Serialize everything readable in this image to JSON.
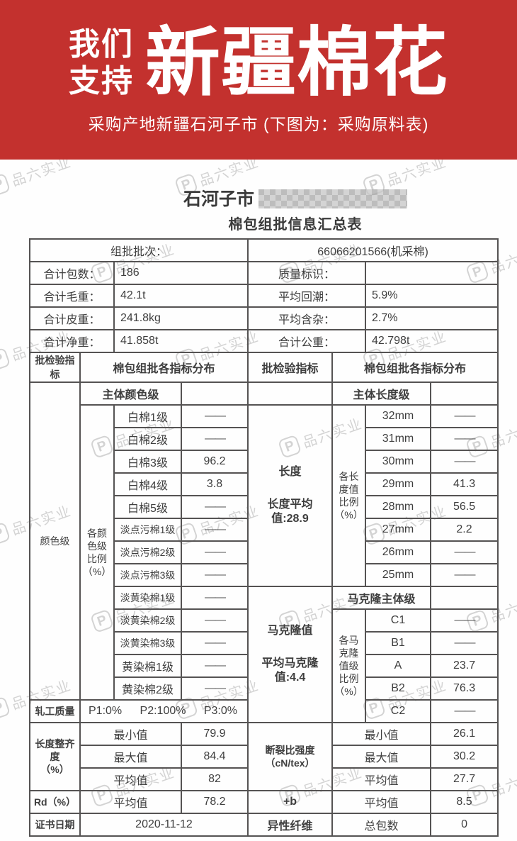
{
  "banner": {
    "bg_color": "#c3312e",
    "slogan_line1": "我们",
    "slogan_line2": "支持",
    "headline": "新疆棉花",
    "subtitle": "采购产地新疆石河子市 (下图为：采购原料表)"
  },
  "watermark": {
    "logo_glyph": "P",
    "text": "品六实业"
  },
  "doc": {
    "title_prefix": "石河子市",
    "subtitle": "棉包组批信息汇总表",
    "summary": {
      "batch_label": "组批批次：",
      "batch_value": "66066201566(机采棉)",
      "rows": [
        {
          "l1": "合计包数：",
          "v1": "186",
          "l2": "质量标识：",
          "v2": ""
        },
        {
          "l1": "合计毛重：",
          "v1": "42.1t",
          "l2": "平均回潮：",
          "v2": "5.9%"
        },
        {
          "l1": "合计皮重：",
          "v1": "241.8kg",
          "l2": "平均含杂：",
          "v2": "2.7%"
        },
        {
          "l1": "合计净重：",
          "v1": "41.858t",
          "l2": "合计公重：",
          "v2": "42.798t"
        }
      ]
    },
    "section_header": {
      "left_indicator": "批检验指标",
      "left_title": "棉包组批各指标分布",
      "right_indicator": "批检验指标",
      "right_title": "棉包组批各指标分布"
    },
    "color_block": {
      "row_label": "颜色级",
      "ratio_label": "各颜\n色级\n比例\n（%）",
      "main_header": "主体颜色级",
      "grades": [
        {
          "name": "白棉1级",
          "value": "——"
        },
        {
          "name": "白棉2级",
          "value": "——"
        },
        {
          "name": "白棉3级",
          "value": "96.2"
        },
        {
          "name": "白棉4级",
          "value": "3.8"
        },
        {
          "name": "白棉5级",
          "value": "——"
        },
        {
          "name": "淡点污棉1级",
          "value": "——"
        },
        {
          "name": "淡点污棉2级",
          "value": "——"
        },
        {
          "name": "淡点污棉3级",
          "value": "——"
        },
        {
          "name": "淡黄染棉1级",
          "value": "——"
        },
        {
          "name": "淡黄染棉2级",
          "value": "——"
        },
        {
          "name": "淡黄染棉3级",
          "value": "——"
        },
        {
          "name": "黄染棉1级",
          "value": "——"
        },
        {
          "name": "黄染棉2级",
          "value": "——"
        }
      ]
    },
    "length_block": {
      "indicator": "长度",
      "average": "长度平均值:28.9",
      "main_header": "主体长度级",
      "ratio_label": "各长\n度值\n比例\n（%）",
      "grades": [
        {
          "name": "32mm",
          "value": "——"
        },
        {
          "name": "31mm",
          "value": "——"
        },
        {
          "name": "30mm",
          "value": "——"
        },
        {
          "name": "29mm",
          "value": "41.3"
        },
        {
          "name": "28mm",
          "value": "56.5"
        },
        {
          "name": "27mm",
          "value": "2.2"
        },
        {
          "name": "26mm",
          "value": "——"
        },
        {
          "name": "25mm",
          "value": "——"
        }
      ]
    },
    "micronaire_block": {
      "indicator": "马克隆值",
      "average": "平均马克隆值:4.4",
      "main_header": "马克隆主体级",
      "ratio_label": "各马\n克隆\n值级\n比例\n（%）",
      "grades": [
        {
          "name": "C1",
          "value": "——"
        },
        {
          "name": "B1",
          "value": "——"
        },
        {
          "name": "A",
          "value": "23.7"
        },
        {
          "name": "B2",
          "value": "76.3"
        },
        {
          "name": "C2",
          "value": "——"
        }
      ]
    },
    "ginning": {
      "label": "轧工质量",
      "p1": "P1:0%",
      "p2": "P2:100%",
      "p3": "P3:0%"
    },
    "uniformity": {
      "label": "长度整齐度\n（%）",
      "rows": [
        {
          "stat": "最小值",
          "value": "79.9"
        },
        {
          "stat": "最大值",
          "value": "84.4"
        },
        {
          "stat": "平均值",
          "value": "82"
        }
      ]
    },
    "strength": {
      "label": "断裂比强度\n（cN/tex）",
      "rows": [
        {
          "stat": "最小值",
          "value": "26.1"
        },
        {
          "stat": "最大值",
          "value": "30.2"
        },
        {
          "stat": "平均值",
          "value": "27.7"
        }
      ]
    },
    "rd": {
      "label": "Rd（%）",
      "stat": "平均值",
      "value": "78.2"
    },
    "plus_b": {
      "label": "+b",
      "stat": "平均值",
      "value": "8.5"
    },
    "certificate": {
      "label": "证书日期",
      "value": "2020-11-12"
    },
    "foreign_fiber": {
      "label": "异性纤维",
      "stat": "总包数",
      "value": "0"
    }
  }
}
